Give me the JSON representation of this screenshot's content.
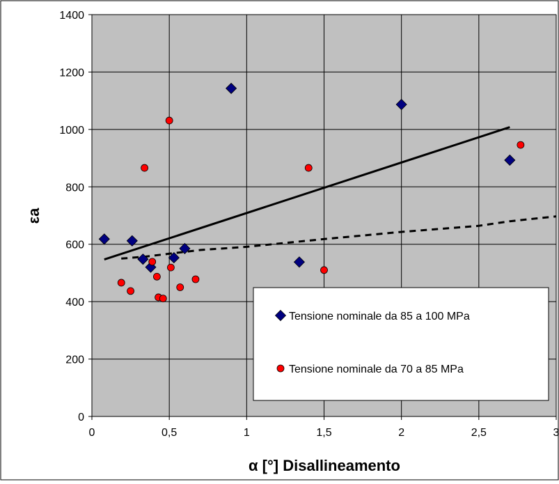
{
  "chart_data": {
    "type": "scatter",
    "title": "",
    "xlabel": "α [°] Disallineamento",
    "ylabel": "εa",
    "xlim": [
      0,
      3
    ],
    "ylim": [
      0,
      1400
    ],
    "x_ticks": [
      "0",
      "0,5",
      "1",
      "1,5",
      "2",
      "2,5",
      "3"
    ],
    "y_ticks": [
      "0",
      "200",
      "400",
      "600",
      "800",
      "1000",
      "1200",
      "1400"
    ],
    "grid": true,
    "plot_background": "#c0c0c0",
    "legend_placement": "lower-right",
    "series": [
      {
        "name": "Tensione nominale da 85 a 100 MPa",
        "marker": "diamond",
        "color": "#000080",
        "points": [
          [
            0.08,
            618
          ],
          [
            0.26,
            612
          ],
          [
            0.33,
            548
          ],
          [
            0.38,
            520
          ],
          [
            0.53,
            553
          ],
          [
            0.6,
            585
          ],
          [
            0.9,
            1143
          ],
          [
            1.34,
            538
          ],
          [
            2.0,
            1087
          ],
          [
            2.7,
            893
          ]
        ]
      },
      {
        "name": "Tensione nominale da 70 a 85 MPa",
        "marker": "circle",
        "color": "#ff0000",
        "points": [
          [
            0.19,
            466
          ],
          [
            0.25,
            437
          ],
          [
            0.34,
            866
          ],
          [
            0.39,
            539
          ],
          [
            0.42,
            487
          ],
          [
            0.43,
            415
          ],
          [
            0.46,
            411
          ],
          [
            0.5,
            1031
          ],
          [
            0.51,
            519
          ],
          [
            0.57,
            450
          ],
          [
            0.67,
            478
          ],
          [
            1.4,
            866
          ],
          [
            1.5,
            510
          ],
          [
            2.77,
            946
          ]
        ]
      }
    ],
    "lines": [
      {
        "style": "solid",
        "color": "#000000",
        "points": [
          [
            0.08,
            547
          ],
          [
            2.7,
            1008
          ]
        ]
      },
      {
        "style": "dashed",
        "color": "#000000",
        "points": [
          [
            0.19,
            550
          ],
          [
            0.35,
            557
          ],
          [
            0.5,
            567
          ],
          [
            0.7,
            580
          ],
          [
            1.0,
            591
          ],
          [
            1.5,
            618
          ],
          [
            2.0,
            643
          ],
          [
            2.5,
            664
          ],
          [
            2.7,
            680
          ],
          [
            3.0,
            697
          ]
        ]
      }
    ]
  }
}
